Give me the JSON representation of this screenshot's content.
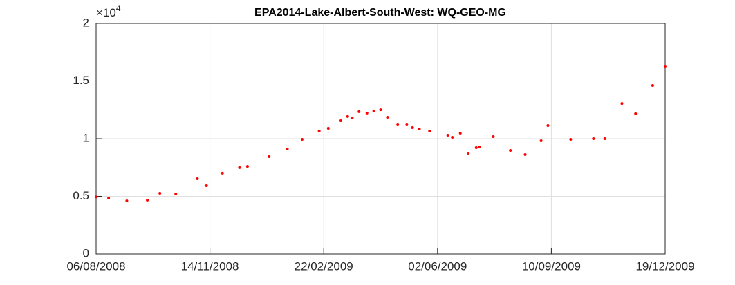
{
  "chart_data": {
    "type": "scatter",
    "title": "EPA2014-Lake-Albert-South-West: WQ-GEO-MG",
    "y_exponent": {
      "base": "×10",
      "power": "4"
    },
    "color": "#ff0000",
    "grid": true,
    "x": [
      "06/08/2008",
      "17/08/2008",
      "02/09/2008",
      "20/09/2008",
      "01/10/2008",
      "15/10/2008",
      "03/11/2008",
      "11/11/2008",
      "25/11/2008",
      "10/12/2008",
      "17/12/2008",
      "05/01/2009",
      "21/01/2009",
      "03/02/2009",
      "18/02/2009",
      "26/02/2009",
      "09/03/2009",
      "15/03/2009",
      "19/03/2009",
      "25/03/2009",
      "01/04/2009",
      "07/04/2009",
      "13/04/2009",
      "19/04/2009",
      "28/04/2009",
      "06/05/2009",
      "11/05/2009",
      "17/05/2009",
      "26/05/2009",
      "11/06/2009",
      "15/06/2009",
      "22/06/2009",
      "29/06/2009",
      "06/07/2009",
      "09/07/2009",
      "21/07/2009",
      "05/08/2009",
      "18/08/2009",
      "01/09/2009",
      "07/09/2009",
      "27/09/2009",
      "17/10/2009",
      "27/10/2009",
      "11/11/2009",
      "23/11/2009",
      "08/12/2009",
      "19/12/2009"
    ],
    "values": [
      4950,
      4850,
      4610,
      4670,
      5270,
      5210,
      6530,
      5930,
      7010,
      7490,
      7600,
      8440,
      9100,
      9940,
      10660,
      10900,
      11560,
      11920,
      11800,
      12340,
      12220,
      12400,
      12510,
      11860,
      11260,
      11260,
      10960,
      10840,
      10660,
      10300,
      10120,
      10480,
      8740,
      9220,
      9280,
      10180,
      8980,
      8620,
      9820,
      11140,
      9940,
      10000,
      10000,
      13050,
      12160,
      14610,
      16290
    ],
    "xlim": [
      "06/08/2008",
      "19/12/2009"
    ],
    "xticks": [
      "06/08/2008",
      "14/11/2008",
      "22/02/2009",
      "02/06/2009",
      "10/09/2009",
      "19/12/2009"
    ],
    "ylim": [
      0,
      20000
    ],
    "yticks": [
      {
        "value": 0,
        "label": "0"
      },
      {
        "value": 5000,
        "label": "0.5"
      },
      {
        "value": 10000,
        "label": "1"
      },
      {
        "value": 15000,
        "label": "1.5"
      },
      {
        "value": 20000,
        "label": "2"
      }
    ]
  }
}
